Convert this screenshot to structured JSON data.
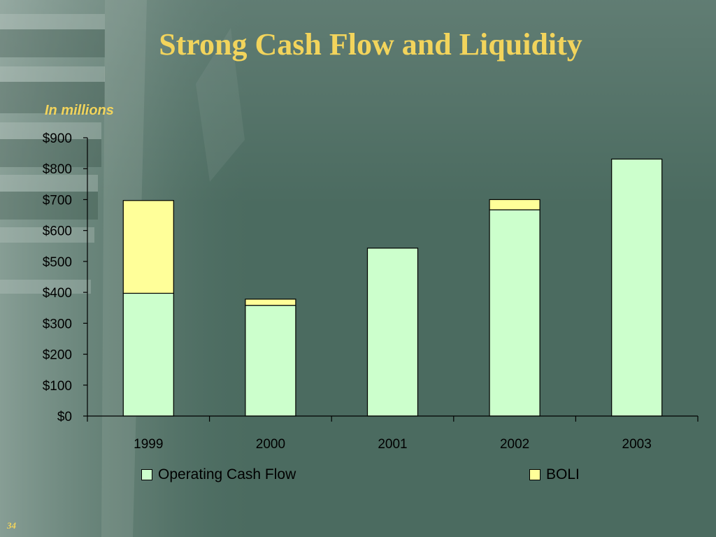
{
  "slide": {
    "title": "Strong Cash Flow and Liquidity",
    "subtitle": "In millions",
    "page_number": "34"
  },
  "colors": {
    "background": "#4b6b60",
    "title": "#f2d45c",
    "operating_cash_flow": "#ccffcc",
    "boli": "#ffff99"
  },
  "chart_data": {
    "type": "bar",
    "stacked": true,
    "categories": [
      "1999",
      "2000",
      "2001",
      "2002",
      "2003"
    ],
    "series": [
      {
        "name": "Operating Cash Flow",
        "values": [
          397,
          358,
          543,
          667,
          831
        ]
      },
      {
        "name": "BOLI",
        "values": [
          300,
          20,
          0,
          33,
          0
        ]
      }
    ],
    "ylim": [
      0,
      900
    ],
    "yticks": [
      0,
      100,
      200,
      300,
      400,
      500,
      600,
      700,
      800,
      900
    ],
    "ytick_labels": [
      "$0",
      "$100",
      "$200",
      "$300",
      "$400",
      "$500",
      "$600",
      "$700",
      "$800",
      "$900"
    ],
    "legend_position": "bottom",
    "grid": false
  }
}
